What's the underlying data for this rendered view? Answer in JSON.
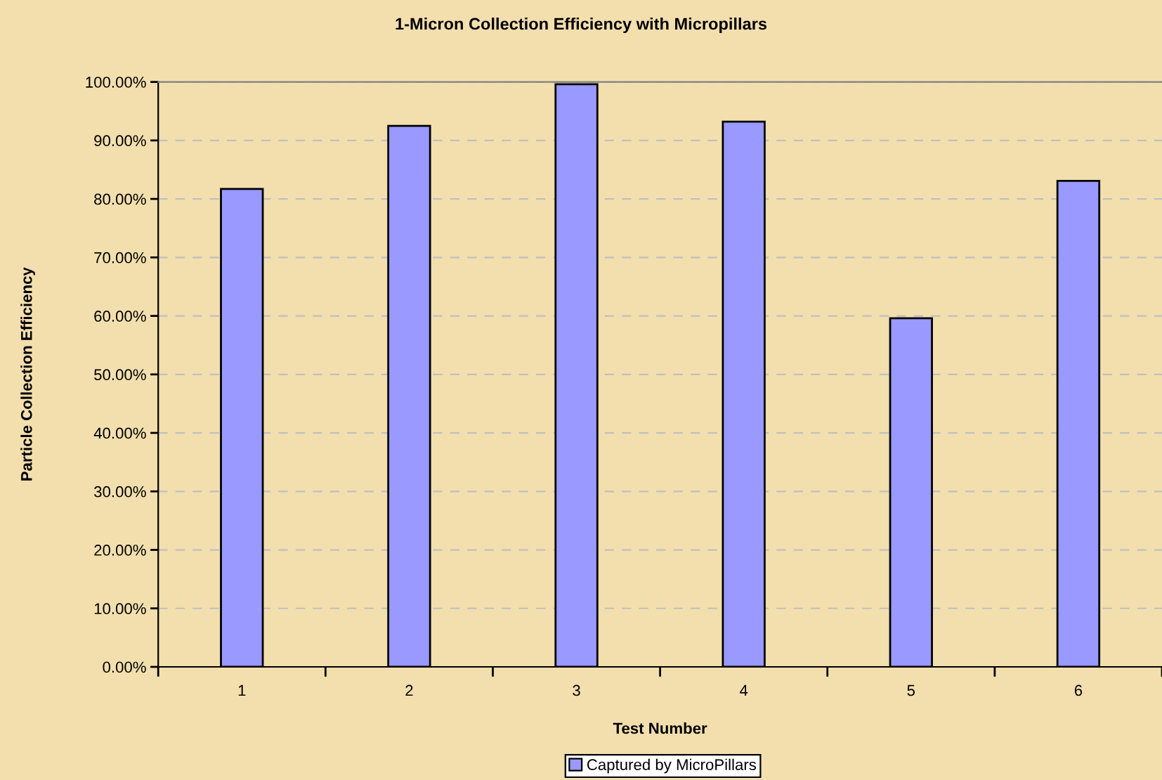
{
  "chart_data": {
    "type": "bar",
    "title": "1-Micron Collection Efficiency with Micropillars",
    "xlabel": "Test Number",
    "ylabel": "Particle Collection Efficiency",
    "categories": [
      "1",
      "2",
      "3",
      "4",
      "5",
      "6"
    ],
    "series": [
      {
        "name": "Captured by MicroPillars",
        "color": "#9999ff",
        "values": [
          81.7,
          92.5,
          99.6,
          93.2,
          59.6,
          83.1
        ]
      }
    ],
    "ylim": [
      0,
      100
    ],
    "yticks": [
      {
        "value": 0,
        "label": "0.00%"
      },
      {
        "value": 10,
        "label": "10.00%"
      },
      {
        "value": 20,
        "label": "20.00%"
      },
      {
        "value": 30,
        "label": "30.00%"
      },
      {
        "value": 40,
        "label": "40.00%"
      },
      {
        "value": 50,
        "label": "50.00%"
      },
      {
        "value": 60,
        "label": "60.00%"
      },
      {
        "value": 70,
        "label": "70.00%"
      },
      {
        "value": 80,
        "label": "80.00%"
      },
      {
        "value": 90,
        "label": "90.00%"
      },
      {
        "value": 100,
        "label": "100.00%"
      }
    ],
    "grid": "y",
    "legend": "bottom"
  }
}
